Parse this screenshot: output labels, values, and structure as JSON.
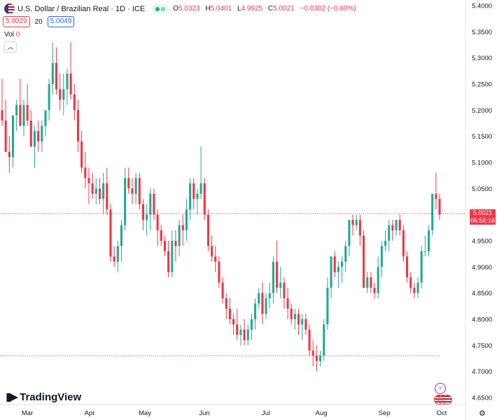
{
  "header": {
    "title": "U.S. Dollar / Brazilian Real · 1D · ICE",
    "open_label": "O",
    "open": "5.0323",
    "high_label": "H",
    "high": "5.0401",
    "low_label": "L",
    "low": "4.9925",
    "close_label": "C",
    "close": "5.0021",
    "change": "−0.0302 (−0.60%)"
  },
  "quote": {
    "bid": "5.0029",
    "spread": "20",
    "ask": "5.0049"
  },
  "volume": {
    "label": "Vol",
    "value": "0"
  },
  "collapse_icon": "chevron-up-icon",
  "price_tag": {
    "price": "5.0021",
    "countdown": "06:56:16"
  },
  "logo": {
    "text": "TradingView"
  },
  "colors": {
    "up": "#22ab94",
    "down": "#f23645",
    "text": "#131722",
    "grid": "#f0f3fa",
    "dotline": "#f23645"
  },
  "chart_data": {
    "type": "candlestick",
    "y_ticks": [
      "5.4000",
      "5.3500",
      "5.3000",
      "5.2500",
      "5.2000",
      "5.1500",
      "5.1000",
      "5.0500",
      "5.0000",
      "4.9500",
      "4.9000",
      "4.8500",
      "4.8000",
      "4.7500",
      "4.7000",
      "4.6500"
    ],
    "x_ticks": [
      "Mar",
      "Apr",
      "May",
      "Jun",
      "Jul",
      "Aug",
      "Sep",
      "Oct"
    ],
    "ylim": [
      4.635,
      5.41
    ],
    "horizontal_lines": [
      5.0021,
      4.73
    ],
    "candles": [
      [
        5.2,
        5.26,
        5.17,
        5.18
      ],
      [
        5.18,
        5.22,
        5.12,
        5.12
      ],
      [
        5.12,
        5.15,
        5.08,
        5.11
      ],
      [
        5.11,
        5.19,
        5.09,
        5.19
      ],
      [
        5.19,
        5.22,
        5.16,
        5.21
      ],
      [
        5.21,
        5.26,
        5.17,
        5.17
      ],
      [
        5.17,
        5.22,
        5.15,
        5.21
      ],
      [
        5.21,
        5.25,
        5.17,
        5.18
      ],
      [
        5.18,
        5.2,
        5.13,
        5.13
      ],
      [
        5.13,
        5.17,
        5.09,
        5.16
      ],
      [
        5.16,
        5.18,
        5.12,
        5.14
      ],
      [
        5.14,
        5.18,
        5.12,
        5.17
      ],
      [
        5.17,
        5.2,
        5.15,
        5.2
      ],
      [
        5.2,
        5.26,
        5.18,
        5.25
      ],
      [
        5.25,
        5.33,
        5.23,
        5.29
      ],
      [
        5.29,
        5.32,
        5.23,
        5.24
      ],
      [
        5.24,
        5.27,
        5.2,
        5.22
      ],
      [
        5.22,
        5.27,
        5.19,
        5.24
      ],
      [
        5.24,
        5.28,
        5.21,
        5.27
      ],
      [
        5.27,
        5.33,
        5.22,
        5.23
      ],
      [
        5.23,
        5.25,
        5.18,
        5.2
      ],
      [
        5.2,
        5.22,
        5.12,
        5.14
      ],
      [
        5.14,
        5.16,
        5.08,
        5.09
      ],
      [
        5.09,
        5.12,
        5.05,
        5.07
      ],
      [
        5.07,
        5.09,
        5.02,
        5.06
      ],
      [
        5.06,
        5.08,
        5.03,
        5.04
      ],
      [
        5.04,
        5.07,
        5.02,
        5.05
      ],
      [
        5.05,
        5.07,
        5.02,
        5.03
      ],
      [
        5.03,
        5.08,
        5.0,
        5.06
      ],
      [
        5.06,
        5.09,
        5.0,
        5.01
      ],
      [
        5.01,
        5.02,
        4.91,
        4.92
      ],
      [
        4.92,
        4.94,
        4.9,
        4.91
      ],
      [
        4.91,
        4.95,
        4.89,
        4.94
      ],
      [
        4.94,
        4.99,
        4.91,
        4.98
      ],
      [
        4.98,
        5.09,
        4.97,
        5.07
      ],
      [
        5.07,
        5.09,
        5.04,
        5.05
      ],
      [
        5.05,
        5.07,
        5.02,
        5.04
      ],
      [
        5.04,
        5.08,
        5.02,
        5.07
      ],
      [
        5.07,
        5.08,
        5.01,
        5.02
      ],
      [
        5.02,
        5.03,
        4.97,
        4.99
      ],
      [
        4.99,
        5.02,
        4.96,
        5.0
      ],
      [
        5.0,
        5.05,
        4.97,
        5.04
      ],
      [
        5.04,
        5.05,
        4.99,
        5.0
      ],
      [
        5.0,
        5.01,
        4.94,
        4.97
      ],
      [
        4.97,
        4.98,
        4.94,
        4.95
      ],
      [
        4.95,
        4.96,
        4.92,
        4.93
      ],
      [
        4.93,
        4.95,
        4.88,
        4.89
      ],
      [
        4.89,
        4.97,
        4.88,
        4.95
      ],
      [
        4.95,
        4.97,
        4.91,
        4.94
      ],
      [
        4.94,
        4.99,
        4.92,
        4.98
      ],
      [
        4.98,
        5.0,
        4.94,
        4.97
      ],
      [
        4.97,
        5.03,
        4.95,
        5.01
      ],
      [
        5.01,
        5.07,
        4.99,
        5.06
      ],
      [
        5.06,
        5.07,
        5.01,
        5.03
      ],
      [
        5.03,
        5.05,
        5.0,
        5.04
      ],
      [
        5.04,
        5.13,
        5.03,
        5.06
      ],
      [
        5.06,
        5.07,
        4.99,
        5.0
      ],
      [
        5.0,
        5.01,
        4.93,
        4.94
      ],
      [
        4.94,
        4.96,
        4.91,
        4.92
      ],
      [
        4.92,
        4.94,
        4.89,
        4.91
      ],
      [
        4.91,
        4.92,
        4.86,
        4.87
      ],
      [
        4.87,
        4.88,
        4.83,
        4.84
      ],
      [
        4.84,
        4.85,
        4.8,
        4.82
      ],
      [
        4.82,
        4.84,
        4.79,
        4.8
      ],
      [
        4.8,
        4.81,
        4.77,
        4.79
      ],
      [
        4.79,
        4.82,
        4.76,
        4.77
      ],
      [
        4.77,
        4.79,
        4.75,
        4.78
      ],
      [
        4.78,
        4.8,
        4.75,
        4.76
      ],
      [
        4.76,
        4.79,
        4.75,
        4.78
      ],
      [
        4.78,
        4.81,
        4.76,
        4.8
      ],
      [
        4.8,
        4.84,
        4.78,
        4.83
      ],
      [
        4.83,
        4.86,
        4.82,
        4.85
      ],
      [
        4.85,
        4.87,
        4.79,
        4.81
      ],
      [
        4.81,
        4.85,
        4.8,
        4.84
      ],
      [
        4.84,
        4.87,
        4.82,
        4.85
      ],
      [
        4.85,
        4.92,
        4.83,
        4.91
      ],
      [
        4.91,
        4.95,
        4.85,
        4.86
      ],
      [
        4.86,
        4.9,
        4.84,
        4.87
      ],
      [
        4.87,
        4.88,
        4.82,
        4.84
      ],
      [
        4.84,
        4.86,
        4.8,
        4.82
      ],
      [
        4.82,
        4.83,
        4.79,
        4.8
      ],
      [
        4.8,
        4.82,
        4.78,
        4.81
      ],
      [
        4.81,
        4.82,
        4.77,
        4.79
      ],
      [
        4.79,
        4.81,
        4.76,
        4.8
      ],
      [
        4.8,
        4.81,
        4.77,
        4.78
      ],
      [
        4.78,
        4.79,
        4.73,
        4.74
      ],
      [
        4.74,
        4.76,
        4.71,
        4.73
      ],
      [
        4.73,
        4.75,
        4.7,
        4.72
      ],
      [
        4.72,
        4.74,
        4.71,
        4.73
      ],
      [
        4.73,
        4.8,
        4.72,
        4.79
      ],
      [
        4.79,
        4.88,
        4.78,
        4.86
      ],
      [
        4.86,
        4.92,
        4.84,
        4.92
      ],
      [
        4.92,
        4.93,
        4.88,
        4.89
      ],
      [
        4.89,
        4.91,
        4.86,
        4.9
      ],
      [
        4.9,
        4.92,
        4.87,
        4.91
      ],
      [
        4.91,
        4.95,
        4.89,
        4.94
      ],
      [
        4.94,
        4.99,
        4.92,
        4.99
      ],
      [
        4.99,
        5.0,
        4.96,
        4.98
      ],
      [
        4.98,
        5.0,
        4.97,
        4.99
      ],
      [
        4.99,
        5.0,
        4.94,
        4.96
      ],
      [
        4.96,
        4.97,
        4.86,
        4.86
      ],
      [
        4.86,
        4.89,
        4.85,
        4.88
      ],
      [
        4.88,
        4.89,
        4.85,
        4.86
      ],
      [
        4.86,
        4.87,
        4.84,
        4.85
      ],
      [
        4.85,
        4.92,
        4.84,
        4.9
      ],
      [
        4.9,
        4.95,
        4.88,
        4.94
      ],
      [
        4.94,
        4.97,
        4.93,
        4.95
      ],
      [
        4.95,
        4.99,
        4.93,
        4.98
      ],
      [
        4.98,
        4.99,
        4.95,
        4.97
      ],
      [
        4.97,
        4.99,
        4.96,
        4.99
      ],
      [
        4.99,
        5.0,
        4.96,
        4.97
      ],
      [
        4.97,
        4.98,
        4.91,
        4.92
      ],
      [
        4.92,
        4.93,
        4.87,
        4.88
      ],
      [
        4.88,
        4.89,
        4.85,
        4.86
      ],
      [
        4.86,
        4.87,
        4.84,
        4.85
      ],
      [
        4.85,
        4.88,
        4.84,
        4.87
      ],
      [
        4.87,
        4.94,
        4.86,
        4.93
      ],
      [
        4.93,
        4.96,
        4.92,
        4.93
      ],
      [
        4.93,
        4.98,
        4.92,
        4.97
      ],
      [
        4.97,
        5.04,
        4.96,
        5.04
      ],
      [
        5.04,
        5.08,
        5.01,
        5.03
      ],
      [
        5.03,
        5.04,
        4.99,
        5.0
      ]
    ]
  }
}
